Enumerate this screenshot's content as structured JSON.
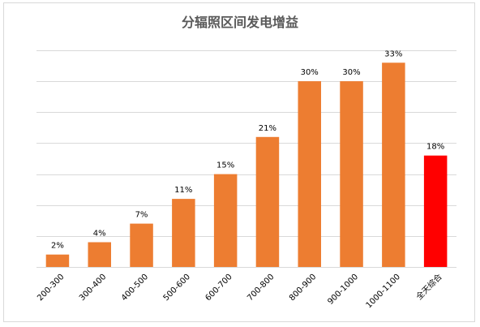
{
  "chart_data": {
    "type": "bar",
    "title": "分辐照区间发电增益",
    "xlabel": "",
    "ylabel": "",
    "categories": [
      "200-300",
      "300-400",
      "400-500",
      "500-600",
      "600-700",
      "700-800",
      "800-900",
      "900-1000",
      "1000-1100",
      "全天综合"
    ],
    "values": [
      2,
      4,
      7,
      11,
      15,
      21,
      30,
      30,
      33,
      18
    ],
    "data_labels": [
      "2%",
      "4%",
      "7%",
      "11%",
      "15%",
      "21%",
      "30%",
      "30%",
      "33%",
      "18%"
    ],
    "ylim": [
      0,
      35
    ],
    "grid_step": 5,
    "grid": true,
    "legend": "none",
    "colors": {
      "default_bar": "#ED7D31",
      "highlight_bar": "#FF0000",
      "highlight_category": "全天综合",
      "grid": "#D9D9D9"
    }
  }
}
